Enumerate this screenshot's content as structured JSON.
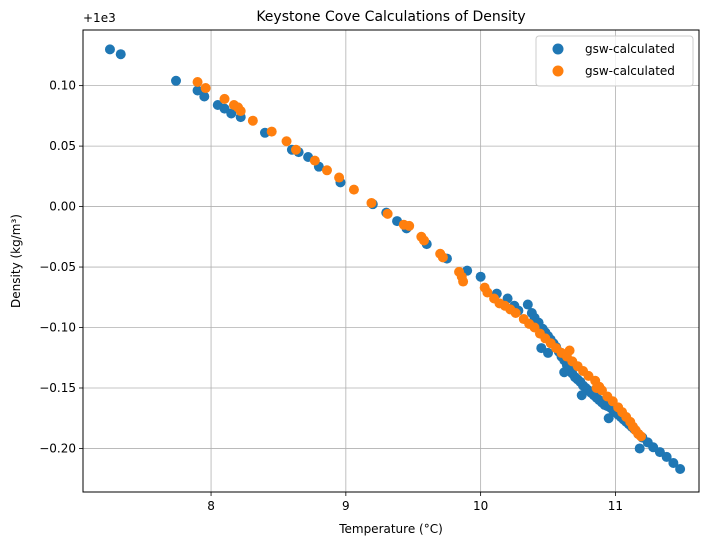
{
  "chart_data": {
    "type": "scatter",
    "title": "Keystone Cove Calculations of Density",
    "xlabel": "Temperature (°C)",
    "ylabel": "Density (kg/m³)",
    "offset_label": "+1e3",
    "xlim": [
      7.05,
      11.62
    ],
    "ylim": [
      -0.236,
      0.146
    ],
    "xticks": [
      8,
      9,
      10,
      11
    ],
    "xtick_labels": [
      "8",
      "9",
      "10",
      "11"
    ],
    "yticks": [
      0.1,
      0.05,
      0.0,
      -0.05,
      -0.1,
      -0.15,
      -0.2
    ],
    "ytick_labels": [
      "0.10",
      "0.05",
      "0.00",
      "−0.05",
      "−0.10",
      "−0.15",
      "−0.20"
    ],
    "grid": true,
    "legend_position": "top-right",
    "series": [
      {
        "name": "gsw-calculated",
        "color": "#1f77b4",
        "points": [
          [
            7.25,
            0.13
          ],
          [
            7.33,
            0.126
          ],
          [
            7.74,
            0.104
          ],
          [
            7.9,
            0.096
          ],
          [
            7.95,
            0.091
          ],
          [
            8.05,
            0.084
          ],
          [
            8.1,
            0.081
          ],
          [
            8.15,
            0.077
          ],
          [
            8.22,
            0.074
          ],
          [
            8.4,
            0.061
          ],
          [
            8.6,
            0.047
          ],
          [
            8.65,
            0.045
          ],
          [
            8.72,
            0.041
          ],
          [
            8.8,
            0.033
          ],
          [
            8.96,
            0.02
          ],
          [
            9.2,
            0.002
          ],
          [
            9.3,
            -0.005
          ],
          [
            9.38,
            -0.012
          ],
          [
            9.45,
            -0.018
          ],
          [
            9.6,
            -0.031
          ],
          [
            9.75,
            -0.043
          ],
          [
            9.9,
            -0.053
          ],
          [
            10.0,
            -0.058
          ],
          [
            10.12,
            -0.072
          ],
          [
            10.2,
            -0.076
          ],
          [
            10.25,
            -0.082
          ],
          [
            10.28,
            -0.086
          ],
          [
            10.35,
            -0.081
          ],
          [
            10.38,
            -0.088
          ],
          [
            10.4,
            -0.092
          ],
          [
            10.43,
            -0.096
          ],
          [
            10.46,
            -0.101
          ],
          [
            10.48,
            -0.104
          ],
          [
            10.5,
            -0.107
          ],
          [
            10.52,
            -0.11
          ],
          [
            10.54,
            -0.113
          ],
          [
            10.56,
            -0.116
          ],
          [
            10.58,
            -0.12
          ],
          [
            10.6,
            -0.124
          ],
          [
            10.62,
            -0.127
          ],
          [
            10.64,
            -0.131
          ],
          [
            10.66,
            -0.134
          ],
          [
            10.68,
            -0.138
          ],
          [
            10.7,
            -0.141
          ],
          [
            10.72,
            -0.143
          ],
          [
            10.74,
            -0.145
          ],
          [
            10.76,
            -0.148
          ],
          [
            10.78,
            -0.15
          ],
          [
            10.8,
            -0.152
          ],
          [
            10.82,
            -0.154
          ],
          [
            10.84,
            -0.156
          ],
          [
            10.86,
            -0.158
          ],
          [
            10.88,
            -0.16
          ],
          [
            10.9,
            -0.162
          ],
          [
            10.92,
            -0.164
          ],
          [
            10.94,
            -0.165
          ],
          [
            10.96,
            -0.166
          ],
          [
            10.98,
            -0.168
          ],
          [
            11.0,
            -0.17
          ],
          [
            11.02,
            -0.172
          ],
          [
            11.04,
            -0.174
          ],
          [
            11.06,
            -0.176
          ],
          [
            11.08,
            -0.178
          ],
          [
            11.1,
            -0.18
          ],
          [
            11.12,
            -0.182
          ],
          [
            11.14,
            -0.184
          ],
          [
            11.17,
            -0.188
          ],
          [
            11.2,
            -0.191
          ],
          [
            11.24,
            -0.195
          ],
          [
            11.28,
            -0.199
          ],
          [
            11.33,
            -0.203
          ],
          [
            11.38,
            -0.207
          ],
          [
            11.43,
            -0.212
          ],
          [
            11.48,
            -0.217
          ],
          [
            11.18,
            -0.2
          ],
          [
            10.5,
            -0.121
          ],
          [
            10.62,
            -0.137
          ],
          [
            10.75,
            -0.156
          ],
          [
            10.95,
            -0.175
          ],
          [
            10.45,
            -0.117
          ]
        ]
      },
      {
        "name": "gsw-calculated",
        "color": "#ff7f0e",
        "points": [
          [
            7.9,
            0.103
          ],
          [
            7.96,
            0.098
          ],
          [
            8.1,
            0.089
          ],
          [
            8.17,
            0.084
          ],
          [
            8.2,
            0.082
          ],
          [
            8.22,
            0.079
          ],
          [
            8.31,
            0.071
          ],
          [
            8.45,
            0.062
          ],
          [
            8.56,
            0.054
          ],
          [
            8.63,
            0.047
          ],
          [
            8.77,
            0.038
          ],
          [
            8.86,
            0.03
          ],
          [
            8.95,
            0.024
          ],
          [
            9.06,
            0.014
          ],
          [
            9.19,
            0.003
          ],
          [
            9.31,
            -0.006
          ],
          [
            9.43,
            -0.015
          ],
          [
            9.47,
            -0.016
          ],
          [
            9.56,
            -0.025
          ],
          [
            9.58,
            -0.028
          ],
          [
            9.7,
            -0.039
          ],
          [
            9.72,
            -0.042
          ],
          [
            9.84,
            -0.054
          ],
          [
            9.86,
            -0.058
          ],
          [
            9.87,
            -0.062
          ],
          [
            10.03,
            -0.067
          ],
          [
            10.05,
            -0.071
          ],
          [
            10.1,
            -0.076
          ],
          [
            10.14,
            -0.08
          ],
          [
            10.18,
            -0.082
          ],
          [
            10.22,
            -0.085
          ],
          [
            10.26,
            -0.088
          ],
          [
            10.32,
            -0.093
          ],
          [
            10.36,
            -0.097
          ],
          [
            10.4,
            -0.1
          ],
          [
            10.44,
            -0.105
          ],
          [
            10.48,
            -0.109
          ],
          [
            10.52,
            -0.113
          ],
          [
            10.56,
            -0.117
          ],
          [
            10.6,
            -0.121
          ],
          [
            10.64,
            -0.124
          ],
          [
            10.68,
            -0.128
          ],
          [
            10.72,
            -0.132
          ],
          [
            10.76,
            -0.136
          ],
          [
            10.8,
            -0.14
          ],
          [
            10.85,
            -0.144
          ],
          [
            10.88,
            -0.149
          ],
          [
            10.9,
            -0.152
          ],
          [
            10.94,
            -0.157
          ],
          [
            10.98,
            -0.161
          ],
          [
            11.02,
            -0.166
          ],
          [
            11.05,
            -0.17
          ],
          [
            11.08,
            -0.174
          ],
          [
            11.11,
            -0.178
          ],
          [
            11.13,
            -0.182
          ],
          [
            11.15,
            -0.185
          ],
          [
            11.17,
            -0.188
          ],
          [
            11.19,
            -0.19
          ],
          [
            10.66,
            -0.119
          ],
          [
            10.86,
            -0.15
          ]
        ]
      }
    ]
  }
}
